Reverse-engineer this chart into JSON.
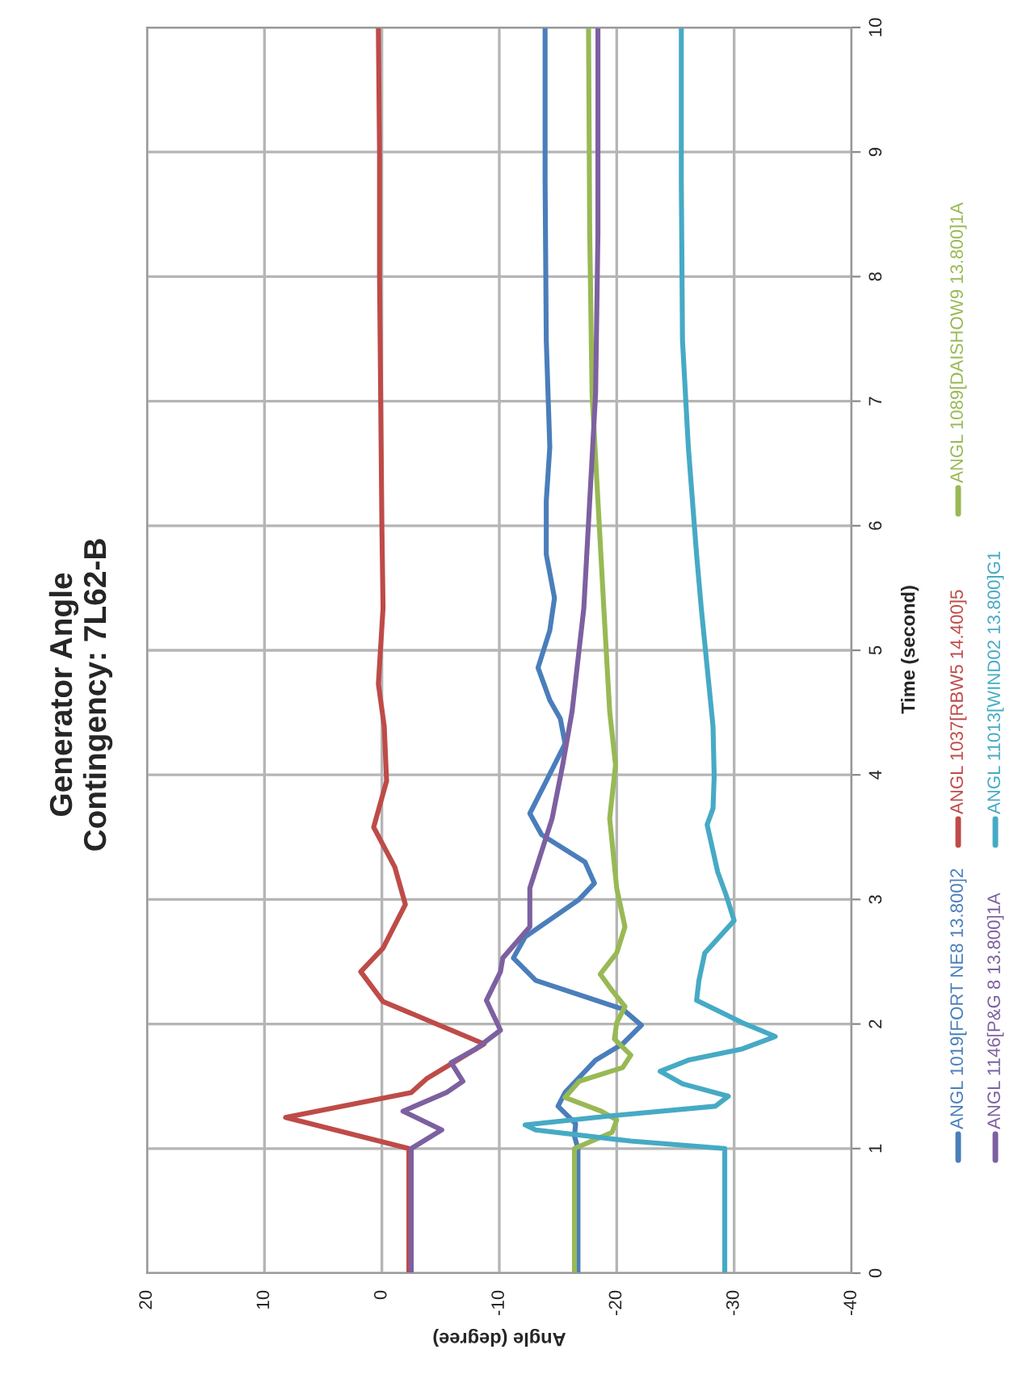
{
  "chart_data": {
    "type": "line",
    "title": "Generator Angle\nContingency: 7L62-B",
    "xlabel": "Angle (degree)",
    "ylabel": "Time (second)",
    "xlim": [
      20,
      -40
    ],
    "xticks": [
      20,
      10,
      0,
      -10,
      -20,
      -30,
      -40
    ],
    "ylim": [
      0,
      10
    ],
    "yticks": [
      0,
      1,
      2,
      3,
      4,
      5,
      6,
      7,
      8,
      9,
      10
    ],
    "grid": true,
    "legend": "right",
    "series": [
      {
        "name": "ANGL 1019[FORT NE8 13.800]2",
        "color": "#4a7ebb",
        "values": [
          0,
          1,
          1.1,
          1.2,
          1.34,
          1.45,
          1.71,
          1.84,
          1.99,
          2.12,
          2.35,
          2.53,
          2.7,
          3.0,
          3.13,
          3.3,
          3.52,
          3.69,
          3.95,
          4.25,
          4.45,
          4.6,
          4.86,
          5.16,
          5.42,
          5.77,
          6.2,
          6.63,
          7.49,
          8.78,
          10
        ],
        "x": [
          -16.7,
          -16.7,
          -16.4,
          -16.5,
          -15.0,
          -15.6,
          -18.2,
          -20.5,
          -22.1,
          -20.5,
          -13.1,
          -11.2,
          -12.2,
          -16.8,
          -18.1,
          -17.3,
          -13.6,
          -12.6,
          -14.0,
          -15.6,
          -15.2,
          -14.3,
          -13.3,
          -14.3,
          -14.7,
          -14.0,
          -14.0,
          -14.3,
          -14.0,
          -13.9,
          -13.9
        ]
      },
      {
        "name": "ANGL 1037[RBW5 14.400]5",
        "color": "#be4b48",
        "values": [
          0,
          1,
          1.25,
          1.45,
          1.56,
          1.84,
          2.18,
          2.42,
          2.61,
          2.96,
          3.26,
          3.58,
          3.95,
          4.39,
          4.73,
          5.34,
          6,
          7,
          8,
          9,
          10
        ],
        "x": [
          -2.3,
          -2.3,
          8.2,
          -2.5,
          -3.8,
          -8.7,
          -0.1,
          1.8,
          -0.1,
          -2.0,
          -1.1,
          0.7,
          -0.4,
          -0.2,
          0.3,
          -0.1,
          0.0,
          0.1,
          0.2,
          0.2,
          0.3
        ]
      },
      {
        "name": "ANGL 1089[DAISHOW9 13.800]1A",
        "color": "#98b954",
        "values": [
          0,
          1,
          1.13,
          1.23,
          1.3,
          1.41,
          1.54,
          1.65,
          1.75,
          1.88,
          2.01,
          2.14,
          2.27,
          2.4,
          2.57,
          2.78,
          3.09,
          3.65,
          4.08,
          4.51,
          5.34,
          6.2,
          7.06,
          8.35,
          10
        ],
        "x": [
          -16.4,
          -16.4,
          -19.6,
          -20.0,
          -18.7,
          -15.6,
          -16.8,
          -20.5,
          -21.2,
          -19.8,
          -20.0,
          -20.7,
          -19.6,
          -18.6,
          -20.0,
          -20.7,
          -20.0,
          -19.4,
          -19.9,
          -19.4,
          -18.9,
          -18.4,
          -17.9,
          -17.7,
          -17.6
        ]
      },
      {
        "name": "ANGL 1146[P&G 8 13.800]1A",
        "color": "#7d60a0",
        "values": [
          0,
          1,
          1.15,
          1.3,
          1.45,
          1.54,
          1.69,
          1.8,
          1.95,
          2.19,
          2.42,
          2.53,
          2.78,
          3.09,
          3.65,
          4.08,
          4.51,
          5.34,
          6.2,
          7.06,
          8.35,
          10
        ],
        "x": [
          -2.5,
          -2.5,
          -5.1,
          -1.8,
          -5.5,
          -6.9,
          -5.9,
          -8.0,
          -10.1,
          -8.9,
          -10.1,
          -10.3,
          -12.6,
          -12.6,
          -14.5,
          -15.4,
          -16.2,
          -17.2,
          -17.7,
          -18.2,
          -18.4,
          -18.4
        ]
      },
      {
        "name": "ANGL 11013[WIND02 13.800]G1",
        "color": "#46aac5",
        "values": [
          0,
          1,
          1.06,
          1.15,
          1.19,
          1.26,
          1.34,
          1.42,
          1.52,
          1.62,
          1.71,
          1.8,
          1.9,
          2.01,
          2.19,
          2.35,
          2.57,
          2.83,
          3.04,
          3.22,
          3.6,
          3.73,
          3.99,
          4.39,
          5.34,
          5.77,
          6.63,
          7.49,
          8.78,
          10
        ],
        "x": [
          -29.2,
          -29.2,
          -21.2,
          -13.1,
          -12.2,
          -19.2,
          -28.4,
          -29.5,
          -25.6,
          -23.7,
          -26.1,
          -30.7,
          -33.5,
          -30.7,
          -26.8,
          -27.0,
          -27.5,
          -30.0,
          -29.3,
          -28.6,
          -27.7,
          -28.2,
          -28.3,
          -28.2,
          -27.2,
          -26.8,
          -26.1,
          -25.6,
          -25.5,
          -25.5
        ]
      }
    ]
  }
}
